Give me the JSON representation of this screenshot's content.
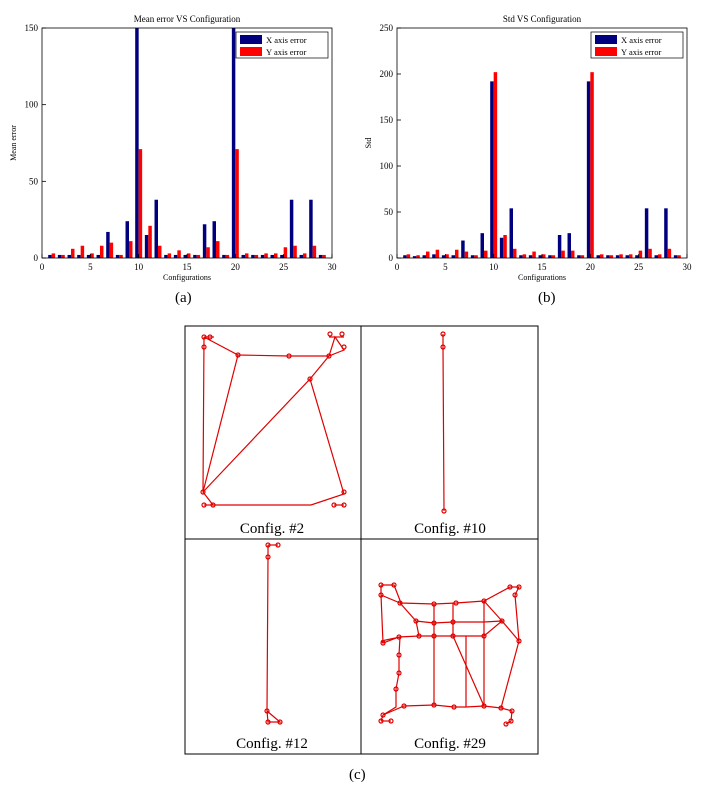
{
  "chart_data": [
    {
      "type": "bar",
      "title": "Mean error VS Configuration",
      "xlabel": "Configurations",
      "ylabel": "Mean error",
      "xlim": [
        0,
        30
      ],
      "ylim": [
        0,
        150
      ],
      "xticks": [
        0,
        5,
        10,
        15,
        20,
        25,
        30
      ],
      "yticks": [
        0,
        50,
        100,
        150
      ],
      "legend_position": "top-right",
      "x": [
        1,
        2,
        3,
        4,
        5,
        6,
        7,
        8,
        9,
        10,
        11,
        12,
        13,
        14,
        15,
        16,
        17,
        18,
        19,
        20,
        21,
        22,
        23,
        24,
        25,
        26,
        27,
        28,
        29
      ],
      "series": [
        {
          "name": "X axis error",
          "color": "#00007f",
          "values": [
            2,
            2,
            2,
            2,
            2,
            2,
            17,
            2,
            24,
            150,
            15,
            38,
            2,
            2,
            2,
            2,
            22,
            24,
            2,
            150,
            2,
            2,
            2,
            2,
            2,
            38,
            2,
            38,
            2
          ]
        },
        {
          "name": "Y axis error",
          "color": "#ff0000",
          "values": [
            3,
            2,
            6,
            8,
            3,
            8,
            10,
            2,
            11,
            71,
            21,
            8,
            3,
            5,
            3,
            2,
            7,
            11,
            2,
            71,
            3,
            2,
            3,
            3,
            7,
            8,
            3,
            8,
            2
          ]
        }
      ]
    },
    {
      "type": "bar",
      "title": "Std VS Configuration",
      "xlabel": "Configurations",
      "ylabel": "Std",
      "xlim": [
        0,
        30
      ],
      "ylim": [
        0,
        250
      ],
      "xticks": [
        0,
        5,
        10,
        15,
        20,
        25,
        30
      ],
      "yticks": [
        0,
        50,
        100,
        150,
        200,
        250
      ],
      "legend_position": "top-right",
      "x": [
        1,
        2,
        3,
        4,
        5,
        6,
        7,
        8,
        9,
        10,
        11,
        12,
        13,
        14,
        15,
        16,
        17,
        18,
        19,
        20,
        21,
        22,
        23,
        24,
        25,
        26,
        27,
        28,
        29
      ],
      "series": [
        {
          "name": "X axis error",
          "color": "#00007f",
          "values": [
            3,
            2,
            3,
            4,
            3,
            3,
            19,
            3,
            27,
            192,
            22,
            54,
            3,
            3,
            3,
            3,
            25,
            27,
            3,
            192,
            3,
            3,
            3,
            3,
            3,
            54,
            3,
            54,
            3
          ]
        },
        {
          "name": "Y axis error",
          "color": "#ff0000",
          "values": [
            4,
            3,
            7,
            9,
            4,
            9,
            7,
            3,
            8,
            202,
            25,
            10,
            4,
            7,
            4,
            3,
            8,
            8,
            3,
            202,
            4,
            3,
            4,
            4,
            8,
            10,
            4,
            10,
            3
          ]
        }
      ]
    }
  ],
  "subfigure_labels": {
    "a": "(a)",
    "b": "(b)",
    "c": "(c)"
  },
  "configs": [
    {
      "caption": "Config. #2"
    },
    {
      "caption": "Config. #10"
    },
    {
      "caption": "Config. #12"
    },
    {
      "caption": "Config. #29"
    }
  ],
  "colors": {
    "network": "#e00000",
    "frame": "#000000"
  }
}
